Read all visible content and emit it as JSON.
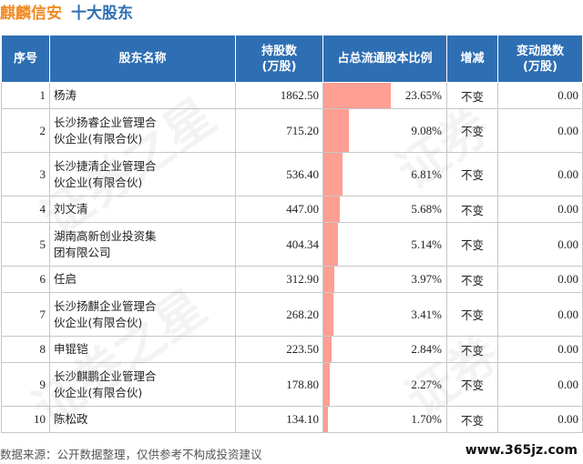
{
  "header": {
    "company": "麒麟信安",
    "subtitle": "十大股东"
  },
  "table": {
    "columns": [
      "序号",
      "股东名称",
      "持股数\n(万股)",
      "占总流通股本比例",
      "增减",
      "变动股数\n(万股)"
    ],
    "rows": [
      {
        "rank": "1",
        "name": "杨涛",
        "shares": "1862.50",
        "ratio": "23.65%",
        "ratio_value": 23.65,
        "change": "不变",
        "change_shares": "0.00"
      },
      {
        "rank": "2",
        "name": "长沙扬睿企业管理合伙企业(有限合伙)",
        "shares": "715.20",
        "ratio": "9.08%",
        "ratio_value": 9.08,
        "change": "不变",
        "change_shares": "0.00"
      },
      {
        "rank": "3",
        "name": "长沙捷清企业管理合伙企业(有限合伙)",
        "shares": "536.40",
        "ratio": "6.81%",
        "ratio_value": 6.81,
        "change": "不变",
        "change_shares": "0.00"
      },
      {
        "rank": "4",
        "name": "刘文清",
        "shares": "447.00",
        "ratio": "5.68%",
        "ratio_value": 5.68,
        "change": "不变",
        "change_shares": "0.00"
      },
      {
        "rank": "5",
        "name": "湖南高新创业投资集团有限公司",
        "shares": "404.34",
        "ratio": "5.14%",
        "ratio_value": 5.14,
        "change": "不变",
        "change_shares": "0.00"
      },
      {
        "rank": "6",
        "name": "任启",
        "shares": "312.90",
        "ratio": "3.97%",
        "ratio_value": 3.97,
        "change": "不变",
        "change_shares": "0.00"
      },
      {
        "rank": "7",
        "name": "长沙扬麒企业管理合伙企业(有限合伙)",
        "shares": "268.20",
        "ratio": "3.41%",
        "ratio_value": 3.41,
        "change": "不变",
        "change_shares": "0.00"
      },
      {
        "rank": "8",
        "name": "申锟铠",
        "shares": "223.50",
        "ratio": "2.84%",
        "ratio_value": 2.84,
        "change": "不变",
        "change_shares": "0.00"
      },
      {
        "rank": "9",
        "name": "长沙麒鹏企业管理合伙企业(有限合伙)",
        "shares": "178.80",
        "ratio": "2.27%",
        "ratio_value": 2.27,
        "change": "不变",
        "change_shares": "0.00"
      },
      {
        "rank": "10",
        "name": "陈松政",
        "shares": "134.10",
        "ratio": "1.70%",
        "ratio_value": 1.7,
        "change": "不变",
        "change_shares": "0.00"
      }
    ]
  },
  "footer": {
    "source": "数据来源：公开数据整理，仅供参考不构成投资建议",
    "site": "www.365jz.com"
  },
  "colors": {
    "header_bg": "#2e6fb3",
    "company_title": "#f08a24",
    "bar": "#ff9e93"
  }
}
